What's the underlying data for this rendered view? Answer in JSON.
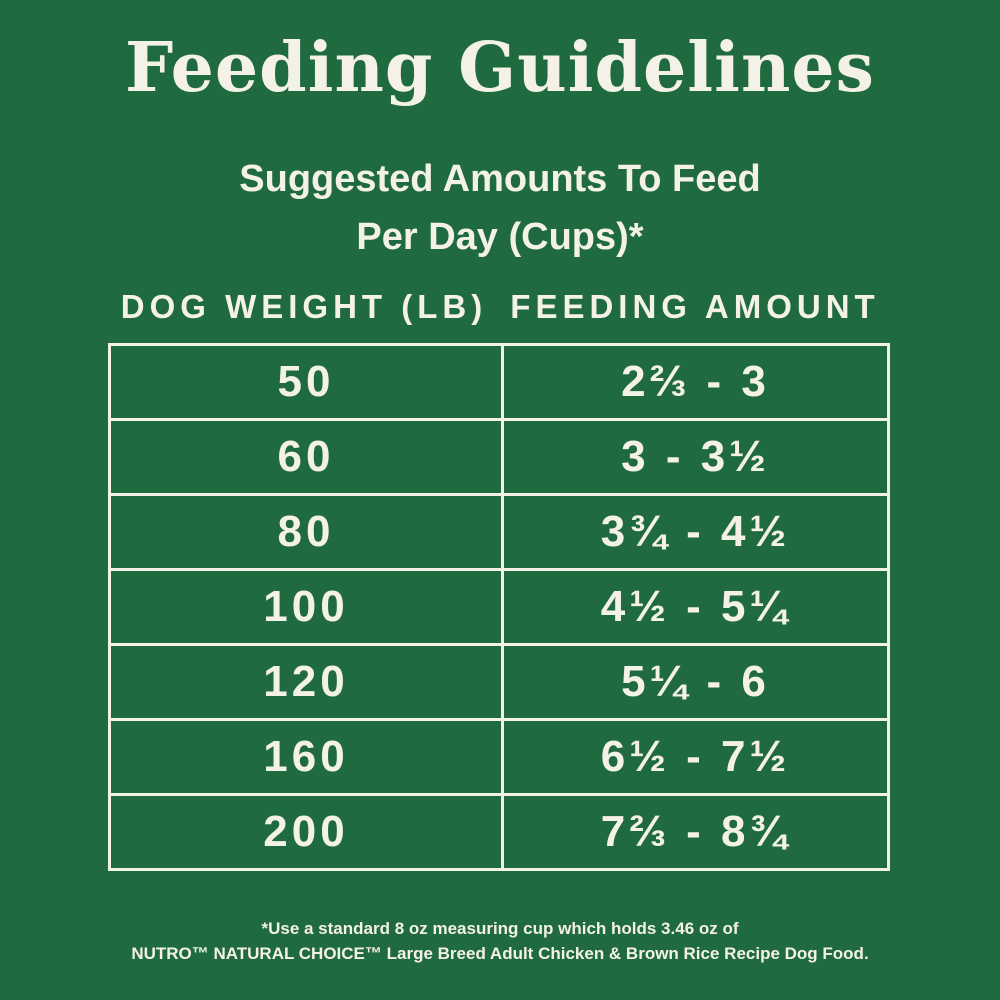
{
  "header": {
    "title": "Feeding Guidelines",
    "subtitle": [
      "Suggested Amounts To Feed",
      "Per Day (Cups)*"
    ]
  },
  "table": {
    "columns": [
      "DOG WEIGHT (LB)",
      "FEEDING AMOUNT"
    ],
    "rows": [
      [
        50,
        "2⅔ - 3"
      ],
      [
        60,
        "3 - 3½"
      ],
      [
        80,
        "3¾ - 4½"
      ],
      [
        100,
        "4½ - 5¼"
      ],
      [
        120,
        "5¼ - 6"
      ],
      [
        160,
        "6½ - 7½"
      ],
      [
        200,
        "7⅔ - 8¾"
      ]
    ]
  },
  "footnote": [
    "*Use a standard 8 oz measuring cup which holds 3.46 oz of",
    "NUTRO™ NATURAL CHOICE™ Large Breed Adult Chicken & Brown Rice Recipe Dog Food."
  ]
}
